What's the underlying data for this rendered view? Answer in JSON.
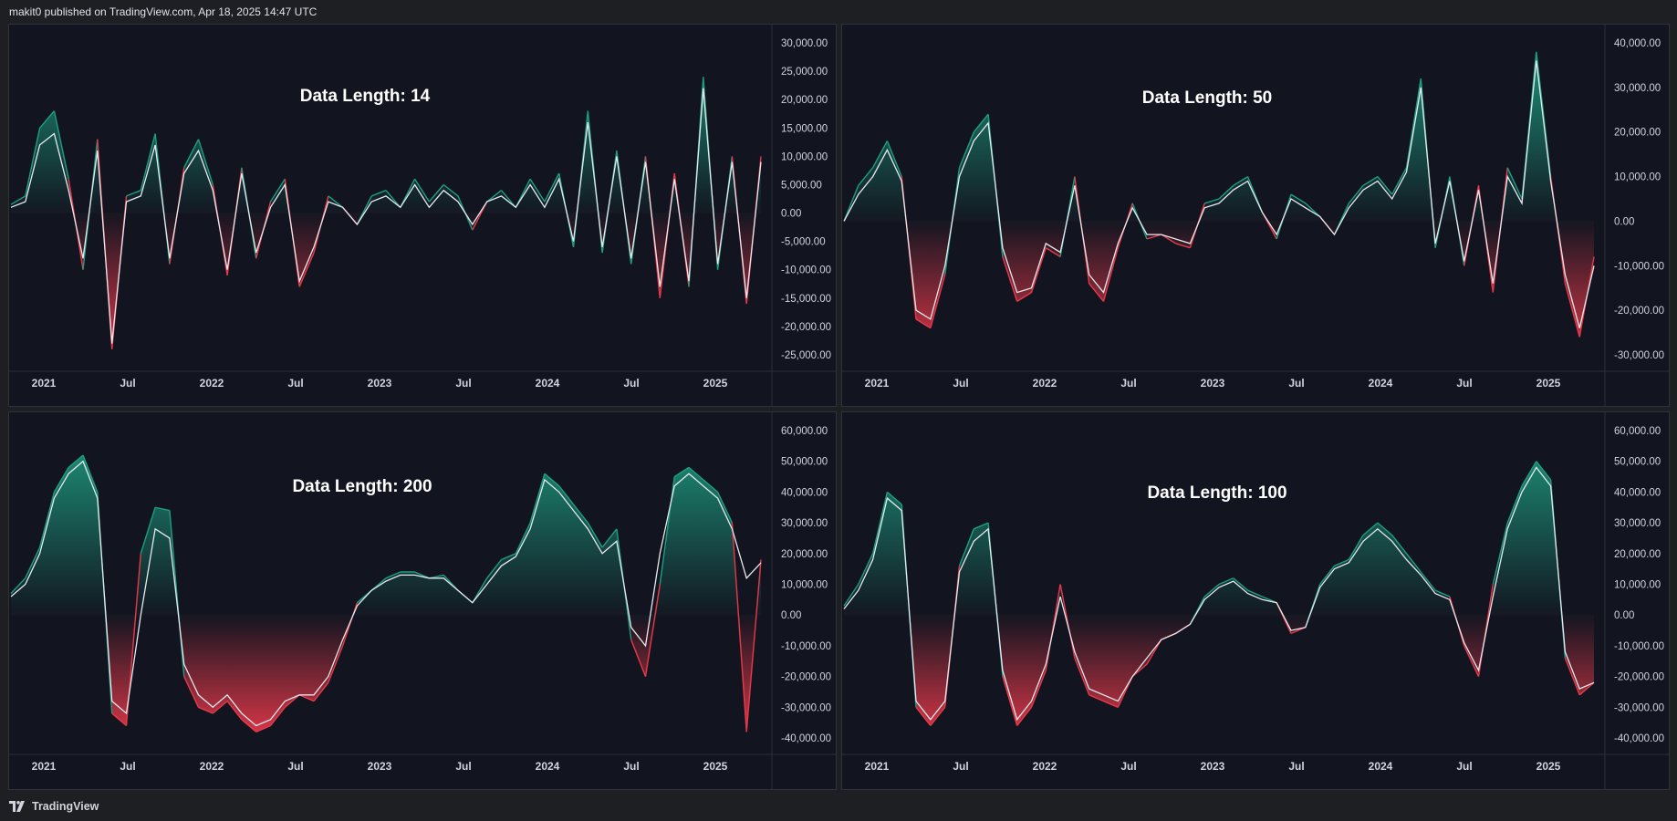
{
  "header": {
    "publish_text": "makit0 published on TradingView.com, Apr 18, 2025 14:47 UTC"
  },
  "footer": {
    "brand": "TradingView",
    "logo_icon": "tradingview-logo-icon"
  },
  "colors": {
    "background": "#121520",
    "positive": "#1d9e82",
    "negative": "#e8394a",
    "smooth_line": "#e7e9ee",
    "axis_text": "#d1d4dc"
  },
  "chart_data": [
    {
      "type": "area",
      "title": "Data Length: 14",
      "x_tick_labels": [
        "2021",
        "Jul",
        "2022",
        "Jul",
        "2023",
        "Jul",
        "2024",
        "Jul",
        "2025"
      ],
      "y_tick_labels": [
        "30,000.00",
        "25,000.00",
        "20,000.00",
        "15,000.00",
        "10,000.00",
        "5,000.00",
        "0.00",
        "-5,000.00",
        "-10,000.00",
        "-15,000.00",
        "-20,000.00",
        "-25,000.00"
      ],
      "ylim": [
        -25000,
        30000
      ],
      "x": [
        "2020-11",
        "2021-01",
        "2021-02",
        "2021-03",
        "2021-04",
        "2021-05",
        "2021-06",
        "2021-07",
        "2021-08",
        "2021-09",
        "2021-10",
        "2021-11",
        "2021-12",
        "2022-01",
        "2022-02",
        "2022-03",
        "2022-04",
        "2022-05",
        "2022-06",
        "2022-07",
        "2022-08",
        "2022-09",
        "2022-10",
        "2022-11",
        "2022-12",
        "2023-01",
        "2023-02",
        "2023-03",
        "2023-04",
        "2023-05",
        "2023-06",
        "2023-07",
        "2023-08",
        "2023-09",
        "2023-10",
        "2023-11",
        "2023-12",
        "2024-01",
        "2024-02",
        "2024-03",
        "2024-04",
        "2024-05",
        "2024-06",
        "2024-07",
        "2024-08",
        "2024-09",
        "2024-10",
        "2024-11",
        "2024-12",
        "2025-01",
        "2025-02",
        "2025-03",
        "2025-04"
      ],
      "series": [
        {
          "values": [
            1500,
            3000,
            15000,
            18000,
            6000,
            -10000,
            13000,
            -24000,
            3000,
            4000,
            14000,
            -9000,
            8000,
            13000,
            5000,
            -11000,
            8000,
            -8000,
            2000,
            6000,
            -13000,
            -7000,
            3000,
            1000,
            -2000,
            3000,
            4000,
            1000,
            6000,
            2000,
            5000,
            3000,
            -3000,
            2000,
            4000,
            1000,
            6000,
            2000,
            7000,
            -6000,
            18000,
            -7000,
            11000,
            -9000,
            10000,
            -15000,
            7000,
            -13000,
            24000,
            -10000,
            10000,
            -16000,
            10000
          ]
        },
        {
          "values": [
            1000,
            2000,
            12000,
            14000,
            4000,
            -8000,
            11000,
            -23000,
            2000,
            3000,
            12000,
            -8000,
            7000,
            11000,
            4000,
            -10000,
            7000,
            -7000,
            1000,
            5000,
            -12000,
            -6000,
            2000,
            1000,
            -2000,
            2000,
            3000,
            1000,
            5000,
            1000,
            4000,
            2000,
            -2000,
            2000,
            3000,
            1000,
            5000,
            1000,
            6000,
            -5000,
            16000,
            -6000,
            10000,
            -8000,
            9000,
            -13000,
            6000,
            -12000,
            22000,
            -9000,
            9000,
            -15000,
            9000
          ]
        }
      ]
    },
    {
      "type": "area",
      "title": "Data Length: 50",
      "x_tick_labels": [
        "2021",
        "Jul",
        "2022",
        "Jul",
        "2023",
        "Jul",
        "2024",
        "Jul",
        "2025"
      ],
      "y_tick_labels": [
        "40,000.00",
        "30,000.00",
        "20,000.00",
        "10,000.00",
        "0.00",
        "-10,000.00",
        "-20,000.00",
        "-30,000.00"
      ],
      "ylim": [
        -30000,
        40000
      ],
      "x": [
        "2020-11",
        "2021-01",
        "2021-02",
        "2021-03",
        "2021-04",
        "2021-05",
        "2021-06",
        "2021-07",
        "2021-08",
        "2021-09",
        "2021-10",
        "2021-11",
        "2021-12",
        "2022-01",
        "2022-02",
        "2022-03",
        "2022-04",
        "2022-05",
        "2022-06",
        "2022-07",
        "2022-08",
        "2022-09",
        "2022-10",
        "2022-11",
        "2022-12",
        "2023-01",
        "2023-02",
        "2023-03",
        "2023-04",
        "2023-05",
        "2023-06",
        "2023-07",
        "2023-08",
        "2023-09",
        "2023-10",
        "2023-11",
        "2023-12",
        "2024-01",
        "2024-02",
        "2024-03",
        "2024-04",
        "2024-05",
        "2024-06",
        "2024-07",
        "2024-08",
        "2024-09",
        "2024-10",
        "2024-11",
        "2024-12",
        "2025-01",
        "2025-02",
        "2025-03",
        "2025-04"
      ],
      "series": [
        {
          "values": [
            0,
            8000,
            12000,
            18000,
            10000,
            -22000,
            -24000,
            -12000,
            12000,
            20000,
            24000,
            -8000,
            -18000,
            -16000,
            -6000,
            -8000,
            10000,
            -14000,
            -18000,
            -6000,
            4000,
            -4000,
            -3000,
            -5000,
            -6000,
            4000,
            5000,
            8000,
            10000,
            2000,
            -4000,
            6000,
            4000,
            1000,
            -3000,
            4000,
            8000,
            10000,
            6000,
            12000,
            32000,
            -6000,
            10000,
            -10000,
            8000,
            -16000,
            12000,
            5000,
            38000,
            10000,
            -14000,
            -26000,
            -8000
          ]
        },
        {
          "values": [
            0,
            6000,
            10000,
            16000,
            9000,
            -20000,
            -22000,
            -10000,
            10000,
            18000,
            22000,
            -6000,
            -16000,
            -15000,
            -5000,
            -7000,
            8000,
            -12000,
            -16000,
            -5000,
            3000,
            -3000,
            -3000,
            -4000,
            -5000,
            3000,
            4000,
            7000,
            9000,
            2000,
            -3000,
            5000,
            3000,
            1000,
            -3000,
            3000,
            7000,
            9000,
            5000,
            11000,
            30000,
            -5000,
            9000,
            -9000,
            7000,
            -14000,
            10000,
            4000,
            36000,
            9000,
            -12000,
            -24000,
            -10000
          ]
        }
      ]
    },
    {
      "type": "area",
      "title": "Data Length: 200",
      "x_tick_labels": [
        "2021",
        "Jul",
        "2022",
        "Jul",
        "2023",
        "Jul",
        "2024",
        "Jul",
        "2025"
      ],
      "y_tick_labels": [
        "60,000.00",
        "50,000.00",
        "40,000.00",
        "30,000.00",
        "20,000.00",
        "10,000.00",
        "0.00",
        "-10,000.00",
        "-20,000.00",
        "-30,000.00",
        "-40,000.00"
      ],
      "ylim": [
        -40000,
        60000
      ],
      "x": [
        "2020-11",
        "2021-01",
        "2021-02",
        "2021-03",
        "2021-04",
        "2021-05",
        "2021-06",
        "2021-07",
        "2021-08",
        "2021-09",
        "2021-10",
        "2021-11",
        "2021-12",
        "2022-01",
        "2022-02",
        "2022-03",
        "2022-04",
        "2022-05",
        "2022-06",
        "2022-07",
        "2022-08",
        "2022-09",
        "2022-10",
        "2022-11",
        "2022-12",
        "2023-01",
        "2023-02",
        "2023-03",
        "2023-04",
        "2023-05",
        "2023-06",
        "2023-07",
        "2023-08",
        "2023-09",
        "2023-10",
        "2023-11",
        "2023-12",
        "2024-01",
        "2024-02",
        "2024-03",
        "2024-04",
        "2024-05",
        "2024-06",
        "2024-07",
        "2024-08",
        "2024-09",
        "2024-10",
        "2024-11",
        "2024-12",
        "2025-01",
        "2025-02",
        "2025-03",
        "2025-04"
      ],
      "series": [
        {
          "values": [
            7000,
            12000,
            22000,
            40000,
            48000,
            52000,
            40000,
            -32000,
            -36000,
            20000,
            35000,
            34000,
            -20000,
            -30000,
            -32000,
            -28000,
            -34000,
            -38000,
            -36000,
            -30000,
            -26000,
            -28000,
            -22000,
            -10000,
            4000,
            8000,
            12000,
            14000,
            14000,
            12000,
            13000,
            8000,
            4000,
            12000,
            18000,
            20000,
            30000,
            46000,
            42000,
            36000,
            30000,
            22000,
            28000,
            -8000,
            -20000,
            10000,
            45000,
            48000,
            44000,
            40000,
            30000,
            -38000,
            18000
          ]
        },
        {
          "values": [
            6000,
            10000,
            20000,
            38000,
            46000,
            50000,
            38000,
            -28000,
            -32000,
            0,
            28000,
            25000,
            -16000,
            -26000,
            -30000,
            -26000,
            -32000,
            -36000,
            -34000,
            -28000,
            -26000,
            -26000,
            -20000,
            -8000,
            3000,
            8000,
            11000,
            13000,
            13000,
            12000,
            12000,
            8000,
            4000,
            10000,
            16000,
            19000,
            28000,
            44000,
            40000,
            34000,
            28000,
            20000,
            24000,
            -4000,
            -10000,
            20000,
            42000,
            46000,
            42000,
            38000,
            28000,
            12000,
            17000
          ]
        }
      ]
    },
    {
      "type": "area",
      "title": "Data Length: 100",
      "x_tick_labels": [
        "2021",
        "Jul",
        "2022",
        "Jul",
        "2023",
        "Jul",
        "2024",
        "Jul",
        "2025"
      ],
      "y_tick_labels": [
        "60,000.00",
        "50,000.00",
        "40,000.00",
        "30,000.00",
        "20,000.00",
        "10,000.00",
        "0.00",
        "-10,000.00",
        "-20,000.00",
        "-30,000.00",
        "-40,000.00"
      ],
      "ylim": [
        -40000,
        60000
      ],
      "x": [
        "2020-11",
        "2021-01",
        "2021-02",
        "2021-03",
        "2021-04",
        "2021-05",
        "2021-06",
        "2021-07",
        "2021-08",
        "2021-09",
        "2021-10",
        "2021-11",
        "2021-12",
        "2022-01",
        "2022-02",
        "2022-03",
        "2022-04",
        "2022-05",
        "2022-06",
        "2022-07",
        "2022-08",
        "2022-09",
        "2022-10",
        "2022-11",
        "2022-12",
        "2023-01",
        "2023-02",
        "2023-03",
        "2023-04",
        "2023-05",
        "2023-06",
        "2023-07",
        "2023-08",
        "2023-09",
        "2023-10",
        "2023-11",
        "2023-12",
        "2024-01",
        "2024-02",
        "2024-03",
        "2024-04",
        "2024-05",
        "2024-06",
        "2024-07",
        "2024-08",
        "2024-09",
        "2024-10",
        "2024-11",
        "2024-12",
        "2025-01",
        "2025-02",
        "2025-03",
        "2025-04"
      ],
      "series": [
        {
          "values": [
            3000,
            10000,
            20000,
            40000,
            36000,
            -30000,
            -36000,
            -30000,
            16000,
            28000,
            30000,
            -20000,
            -36000,
            -30000,
            -18000,
            10000,
            -14000,
            -26000,
            -28000,
            -30000,
            -20000,
            -16000,
            -8000,
            -6000,
            -3000,
            6000,
            10000,
            12000,
            8000,
            6000,
            4000,
            -6000,
            -4000,
            10000,
            16000,
            18000,
            26000,
            30000,
            26000,
            20000,
            14000,
            8000,
            6000,
            -10000,
            -20000,
            10000,
            30000,
            42000,
            50000,
            44000,
            -14000,
            -26000,
            -22000
          ]
        },
        {
          "values": [
            2000,
            8000,
            18000,
            38000,
            34000,
            -28000,
            -34000,
            -28000,
            14000,
            24000,
            28000,
            -18000,
            -34000,
            -28000,
            -16000,
            6000,
            -12000,
            -24000,
            -26000,
            -28000,
            -20000,
            -14000,
            -8000,
            -6000,
            -3000,
            5000,
            9000,
            11000,
            7000,
            5000,
            4000,
            -5000,
            -4000,
            9000,
            15000,
            17000,
            24000,
            28000,
            24000,
            18000,
            13000,
            7000,
            5000,
            -9000,
            -18000,
            6000,
            28000,
            40000,
            48000,
            42000,
            -12000,
            -24000,
            -22000
          ]
        }
      ]
    }
  ]
}
